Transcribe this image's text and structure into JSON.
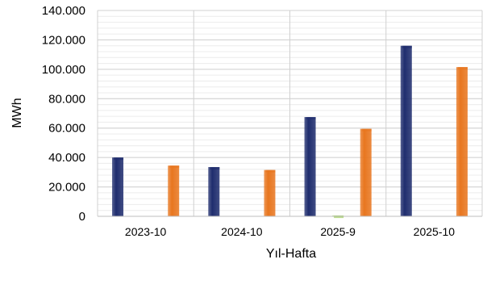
{
  "chart_data": {
    "type": "bar",
    "title": "",
    "xlabel": "Yıl-Hafta",
    "ylabel": "MWh",
    "categories": [
      "2023-10",
      "2024-10",
      "2025-9",
      "2025-10"
    ],
    "ylim": [
      0,
      140000
    ],
    "yticks": [
      0,
      20000,
      40000,
      60000,
      80000,
      100000,
      120000,
      140000
    ],
    "ytick_labels": [
      "0",
      "20.000",
      "40.000",
      "60.000",
      "80.000",
      "100.000",
      "120.000",
      "140.000"
    ],
    "grid": true,
    "series": [
      {
        "values": [
          40000,
          33500,
          67500,
          116000
        ],
        "color": "#1f2d6e"
      },
      {
        "values": [
          0,
          0,
          500,
          0
        ],
        "color": "#8dc63f"
      },
      {
        "values": [
          34500,
          31500,
          59500,
          101500
        ],
        "color": "#e8761f"
      }
    ]
  }
}
